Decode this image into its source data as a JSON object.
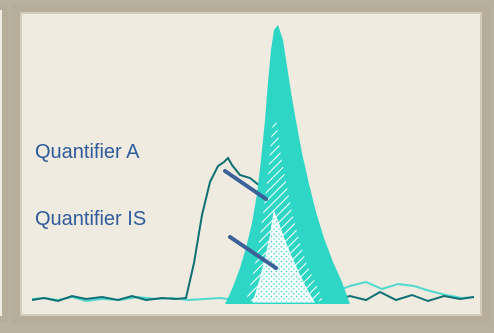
{
  "labels": {
    "quantifier_a": "Quantifier A",
    "quantifier_is": "Quantifier IS"
  },
  "colors": {
    "background": "#efebe0",
    "frame": "#b6ae9b",
    "peak_fill": "#2ed6c6",
    "trace_dark": "#0f6f73",
    "trace_light": "#53d8cf",
    "arrow": "#3b6298",
    "text": "#2f5b9b"
  }
}
